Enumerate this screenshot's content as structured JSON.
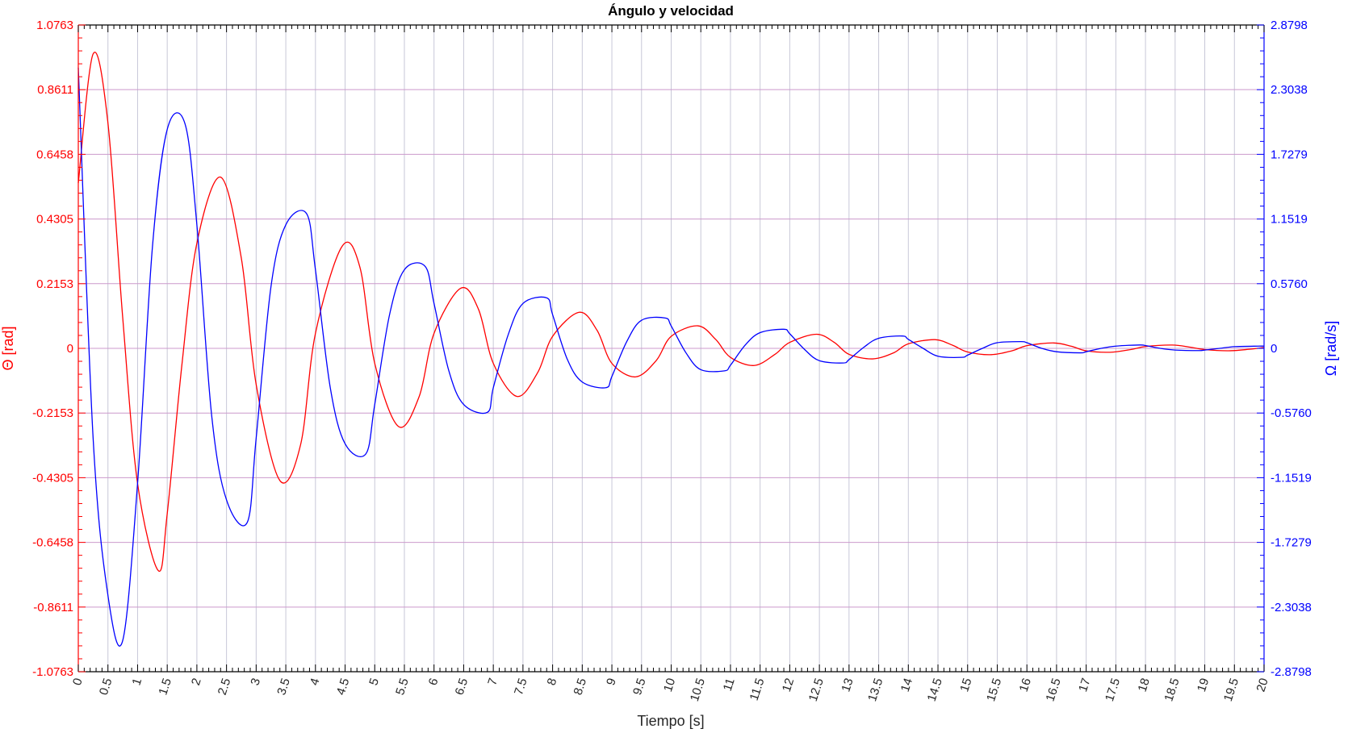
{
  "chart_data": {
    "type": "line",
    "title": "Ángulo y velocidad",
    "xlabel": "Tiempo [s]",
    "ylabel_left": "Θ [rad]",
    "ylabel_right": "Ω [rad/s]",
    "xlim": [
      0,
      20
    ],
    "ylim_left": [
      -1.0763,
      1.0763
    ],
    "ylim_right": [
      -2.8798,
      2.8798
    ],
    "grid": true,
    "colors": {
      "theta": "#ff0000",
      "omega": "#0000ff",
      "grid": "#cc99cc",
      "vgrid": "#c8c8d8",
      "axis": "#000000"
    },
    "x_ticks": [
      "0",
      "0.5",
      "1",
      "1.5",
      "2",
      "2.5",
      "3",
      "3.5",
      "4",
      "4.5",
      "5",
      "5.5",
      "6",
      "6.5",
      "7",
      "7.5",
      "8",
      "8.5",
      "9",
      "9.5",
      "10",
      "10.5",
      "11",
      "11.5",
      "12",
      "12.5",
      "13",
      "13.5",
      "14",
      "14.5",
      "15",
      "15.5",
      "16",
      "16.5",
      "17",
      "17.5",
      "18",
      "18.5",
      "19",
      "19.5",
      "20"
    ],
    "y_ticks_left": [
      "1.0763",
      "0.8611",
      "0.6458",
      "0.4305",
      "0.2153",
      "0",
      "-0.2153",
      "-0.4305",
      "-0.6458",
      "-0.8611",
      "-1.0763"
    ],
    "y_ticks_right": [
      "2.8798",
      "2.3038",
      "1.7279",
      "1.1519",
      "0.5760",
      "0",
      "-0.5760",
      "-1.1519",
      "-1.7279",
      "-2.3038",
      "-2.8798"
    ],
    "series": [
      {
        "key": "theta",
        "axis": "left",
        "x": [
          0,
          0.25,
          0.5,
          0.75,
          1,
          1.35,
          1.5,
          1.75,
          2,
          2.4,
          2.75,
          3,
          3.4,
          3.75,
          4,
          4.45,
          4.75,
          5,
          5.4,
          5.75,
          6,
          6.45,
          6.75,
          7,
          7.4,
          7.75,
          8,
          8.45,
          8.75,
          9,
          9.4,
          9.75,
          10,
          10.45,
          10.75,
          11,
          11.4,
          11.75,
          12,
          12.45,
          12.75,
          13,
          13.4,
          13.75,
          14,
          14.45,
          14.75,
          15,
          15.4,
          15.75,
          16,
          16.45,
          16.75,
          17,
          17.4,
          17.75,
          18,
          18.45,
          18.75,
          19,
          19.4,
          19.75,
          20
        ],
        "y": [
          0.55,
          0.98,
          0.75,
          0.1,
          -0.45,
          -0.74,
          -0.55,
          -0.05,
          0.35,
          0.57,
          0.3,
          -0.12,
          -0.44,
          -0.32,
          0.05,
          0.34,
          0.27,
          -0.05,
          -0.26,
          -0.16,
          0.05,
          0.2,
          0.13,
          -0.05,
          -0.16,
          -0.08,
          0.04,
          0.12,
          0.06,
          -0.05,
          -0.095,
          -0.04,
          0.04,
          0.075,
          0.03,
          -0.03,
          -0.057,
          -0.02,
          0.02,
          0.047,
          0.02,
          -0.02,
          -0.035,
          -0.015,
          0.015,
          0.029,
          0.01,
          -0.012,
          -0.021,
          -0.008,
          0.009,
          0.018,
          0.007,
          -0.008,
          -0.013,
          -0.004,
          0.006,
          0.011,
          0.004,
          -0.004,
          -0.008,
          -0.003,
          0.003
        ]
      },
      {
        "key": "omega",
        "axis": "right",
        "x": [
          0,
          0.25,
          0.5,
          0.75,
          1,
          1.25,
          1.5,
          1.8,
          2,
          2.25,
          2.5,
          2.85,
          3,
          3.25,
          3.5,
          3.85,
          4,
          4.25,
          4.5,
          4.85,
          5,
          5.25,
          5.5,
          5.85,
          6,
          6.25,
          6.5,
          6.9,
          7,
          7.25,
          7.5,
          7.9,
          8,
          8.25,
          8.5,
          8.9,
          9,
          9.25,
          9.5,
          9.9,
          10,
          10.25,
          10.5,
          10.9,
          11,
          11.25,
          11.5,
          11.9,
          12,
          12.25,
          12.5,
          12.9,
          13,
          13.25,
          13.5,
          13.9,
          14,
          14.25,
          14.5,
          14.9,
          15,
          15.25,
          15.5,
          15.9,
          16,
          16.25,
          16.5,
          16.9,
          17,
          17.25,
          17.5,
          17.9,
          18,
          18.25,
          18.5,
          18.9,
          19,
          19.25,
          19.5,
          19.9,
          20
        ],
        "y": [
          2.5,
          -0.8,
          -2.2,
          -2.6,
          -1.2,
          0.9,
          1.95,
          2.0,
          1.1,
          -0.6,
          -1.35,
          -1.55,
          -0.8,
          0.55,
          1.1,
          1.2,
          0.7,
          -0.35,
          -0.85,
          -0.94,
          -0.5,
          0.3,
          0.7,
          0.73,
          0.4,
          -0.2,
          -0.5,
          -0.57,
          -0.35,
          0.12,
          0.4,
          0.45,
          0.3,
          -0.1,
          -0.3,
          -0.35,
          -0.25,
          0.06,
          0.25,
          0.27,
          0.2,
          -0.04,
          -0.19,
          -0.2,
          -0.15,
          0.03,
          0.14,
          0.17,
          0.13,
          -0.01,
          -0.11,
          -0.13,
          -0.1,
          0.01,
          0.09,
          0.11,
          0.08,
          0.0,
          -0.07,
          -0.08,
          -0.06,
          0.0,
          0.05,
          0.06,
          0.05,
          0.0,
          -0.03,
          -0.04,
          -0.03,
          0.0,
          0.02,
          0.03,
          0.025,
          0.0,
          -0.015,
          -0.02,
          -0.015,
          0.0,
          0.015,
          0.02,
          0.02
        ]
      }
    ]
  }
}
